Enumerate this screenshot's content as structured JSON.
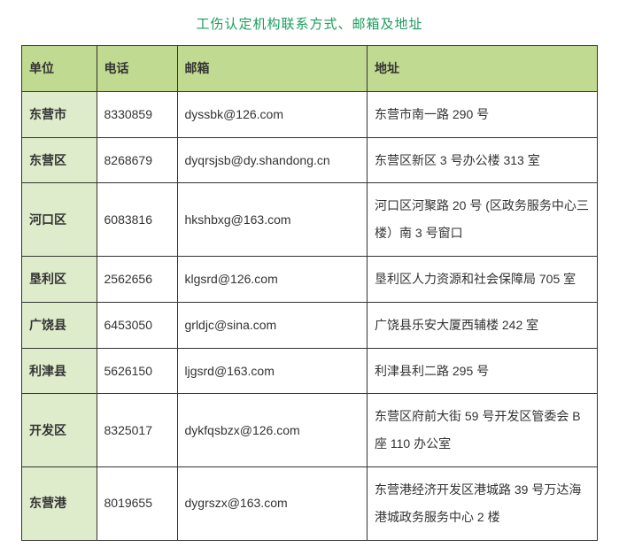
{
  "title": "工伤认定机构联系方式、邮箱及地址",
  "colors": {
    "title": "#1a9e5c",
    "header_bg": "#c1da91",
    "unit_bg": "#dfeccb",
    "border": "#333333",
    "text": "#333333",
    "page_bg": "#ffffff"
  },
  "columns": [
    "单位",
    "电话",
    "邮箱",
    "地址"
  ],
  "rows": [
    {
      "unit": "东营市",
      "phone": "8330859",
      "email": "dyssbk@126.com",
      "address": "东营市南一路 290 号"
    },
    {
      "unit": "东营区",
      "phone": "8268679",
      "email": "dyqrsjsb@dy.shandong.cn",
      "address": "东营区新区 3 号办公楼 313 室"
    },
    {
      "unit": "河口区",
      "phone": "6083816",
      "email": "hkshbxg@163.com",
      "address": "河口区河聚路 20 号 (区政务服务中心三楼）南 3 号窗口"
    },
    {
      "unit": "垦利区",
      "phone": "2562656",
      "email": "klgsrd@126.com",
      "address": "垦利区人力资源和社会保障局 705 室"
    },
    {
      "unit": "广饶县",
      "phone": "6453050",
      "email": "grldjc@sina.com",
      "address": "广饶县乐安大厦西辅楼 242 室"
    },
    {
      "unit": "利津县",
      "phone": "5626150",
      "email": "ljgsrd@163.com",
      "address": "利津县利二路 295 号"
    },
    {
      "unit": "开发区",
      "phone": "8325017",
      "email": "dykfqsbzx@126.com",
      "address": "东营区府前大街 59 号开发区管委会 B 座 110 办公室"
    },
    {
      "unit": "东营港",
      "phone": "8019655",
      "email": "dygrszx@163.com",
      "address": "东营港经济开发区港城路 39 号万达海港城政务服务中心 2 楼"
    }
  ]
}
